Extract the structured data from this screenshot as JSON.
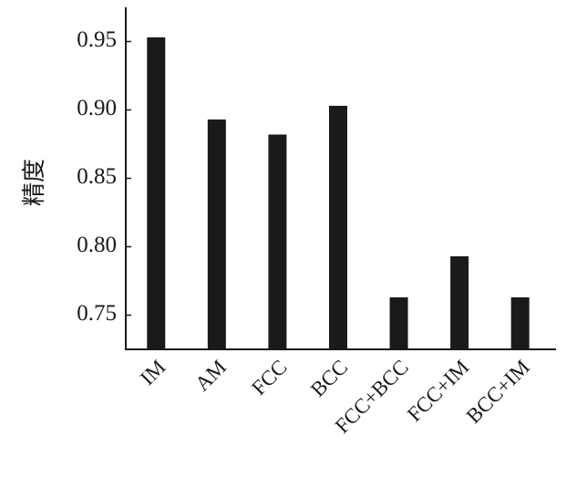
{
  "chart_data": {
    "type": "bar",
    "y_label": "精度",
    "categories": [
      "IM",
      "AM",
      "FCC",
      "BCC",
      "FCC+BCC",
      "FCC+IM",
      "BCC+IM"
    ],
    "values": [
      0.953,
      0.893,
      0.882,
      0.903,
      0.763,
      0.793,
      0.763
    ],
    "color": "#1a1a1a",
    "ylim": [
      0.725,
      0.975
    ],
    "yticks": [
      0.75,
      {
        "value": 0.8,
        "label": "0.80"
      },
      0.85,
      {
        "value": 0.9,
        "label": "0.90"
      },
      0.95
    ],
    "grid": false
  }
}
